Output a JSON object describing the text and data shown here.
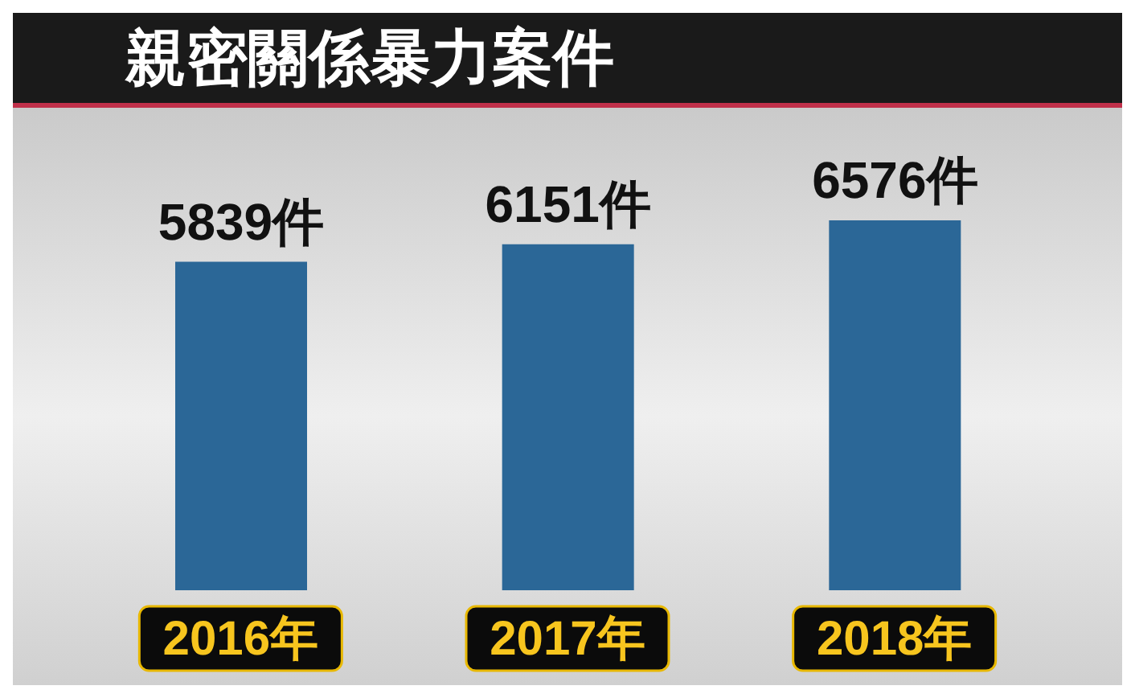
{
  "chart_data": {
    "type": "bar",
    "title": "親密關係暴力案件",
    "categories": [
      "2016年",
      "2017年",
      "2018年"
    ],
    "values": [
      5839,
      6151,
      6576
    ],
    "value_labels": [
      "5839件",
      "6151件",
      "6576件"
    ],
    "color": "#2b6797",
    "grid": false,
    "legend": false
  }
}
